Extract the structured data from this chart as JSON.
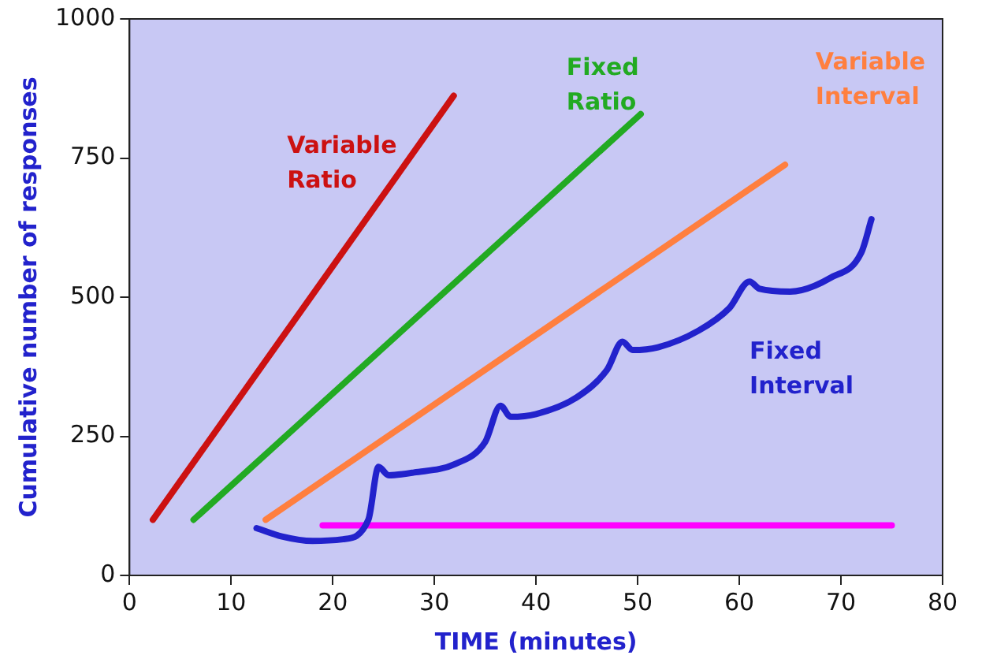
{
  "chart_data": {
    "type": "line",
    "xlabel": "TIME (minutes)",
    "ylabel": "Cumulative number of responses",
    "xlim": [
      0,
      80
    ],
    "xticks": [
      0,
      10,
      20,
      30,
      40,
      50,
      60,
      70,
      80
    ],
    "ylim": [
      0,
      1000
    ],
    "yticks": [
      0,
      250,
      500,
      750,
      1000
    ],
    "grid": false,
    "marker": "none",
    "line_style": "solid",
    "series": [
      {
        "name": "Variable Ratio",
        "color": "#cc1111",
        "x": [
          2.3,
          31.9
        ],
        "values": [
          100,
          862
        ]
      },
      {
        "name": "Fixed Ratio",
        "color": "#22aa22",
        "x": [
          6.3,
          50.3
        ],
        "values": [
          100,
          829
        ]
      },
      {
        "name": "Variable Interval",
        "color": "#ff7f3f",
        "x": [
          13.4,
          64.5
        ],
        "values": [
          100,
          738
        ]
      },
      {
        "name": "Fixed Interval",
        "color": "#2222cc",
        "x": [
          12.5,
          15,
          18,
          21,
          23.5,
          24.5,
          25.5,
          28,
          32,
          35,
          36.5,
          37.5,
          40,
          44,
          47,
          48.5,
          49.5,
          52,
          56,
          59,
          61,
          62,
          65,
          69,
          72,
          73
        ],
        "values": [
          85,
          70,
          62,
          65,
          100,
          195,
          180,
          185,
          200,
          240,
          305,
          285,
          290,
          320,
          370,
          420,
          405,
          410,
          440,
          480,
          528,
          515,
          510,
          535,
          580,
          640
        ]
      },
      {
        "color": "#ff00ff",
        "x": [
          19,
          75
        ],
        "values": [
          90,
          90
        ]
      }
    ]
  }
}
